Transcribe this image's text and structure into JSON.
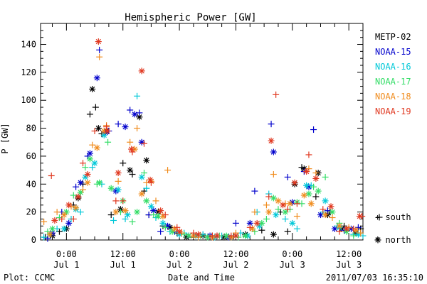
{
  "chart_data": {
    "type": "scatter",
    "title": "Hemispheric Power [GW]",
    "ylabel": "P [GW]",
    "xlabel": "Date and Time",
    "footer_left": "Plot: CCMC",
    "footer_right": "2011/07/03 16:35:10",
    "x_unit": "hours from 2011/07/01 00:00",
    "xlim": [
      -5.5,
      63
    ],
    "ylim": [
      0,
      155
    ],
    "grid": false,
    "y_ticks": [
      0,
      20,
      40,
      60,
      80,
      100,
      120,
      140
    ],
    "x_ticks": [
      {
        "x": 0,
        "time": "0:00",
        "date": "Jul 1"
      },
      {
        "x": 12,
        "time": "12:00",
        "date": "Jul 1"
      },
      {
        "x": 24,
        "time": "0:00",
        "date": "Jul 2"
      },
      {
        "x": 36,
        "time": "12:00",
        "date": "Jul 2"
      },
      {
        "x": 48,
        "time": "0:00",
        "date": "Jul 3"
      },
      {
        "x": 60,
        "time": "12:00",
        "date": "Jul 3"
      }
    ],
    "marker_legend": {
      "south": "+ south",
      "north": "* north"
    },
    "series": [
      {
        "name": "METP-02",
        "color": "#000000",
        "south": [
          [
            -4.5,
            2
          ],
          [
            -1.5,
            6
          ],
          [
            1.5,
            25
          ],
          [
            3.5,
            40
          ],
          [
            5,
            90
          ],
          [
            6.2,
            95
          ],
          [
            7.5,
            76
          ],
          [
            9.5,
            18
          ],
          [
            12,
            55
          ],
          [
            14,
            47
          ],
          [
            16.5,
            35
          ],
          [
            17.5,
            18
          ],
          [
            20.5,
            10
          ],
          [
            23.5,
            5
          ],
          [
            27,
            2
          ],
          [
            31,
            3
          ],
          [
            35.5,
            3
          ],
          [
            41.5,
            7
          ],
          [
            45.5,
            20
          ],
          [
            47,
            6
          ],
          [
            50,
            52
          ],
          [
            53,
            31
          ],
          [
            56,
            20
          ],
          [
            59,
            10
          ],
          [
            62.5,
            8
          ]
        ],
        "north": [
          [
            -3,
            3
          ],
          [
            0,
            8
          ],
          [
            2.5,
            30
          ],
          [
            5.5,
            108
          ],
          [
            6.8,
            80
          ],
          [
            8.5,
            78
          ],
          [
            11.5,
            22
          ],
          [
            13.5,
            50
          ],
          [
            15.5,
            88
          ],
          [
            17,
            57
          ],
          [
            19.5,
            20
          ],
          [
            22,
            9
          ],
          [
            25.5,
            2
          ],
          [
            29,
            3
          ],
          [
            33.5,
            2
          ],
          [
            38,
            4
          ],
          [
            44,
            4
          ],
          [
            48.5,
            40
          ],
          [
            50.5,
            51
          ],
          [
            53.5,
            48
          ],
          [
            55.5,
            18
          ],
          [
            58.5,
            8
          ],
          [
            61.5,
            5
          ]
        ]
      },
      {
        "name": "NOAA-15",
        "color": "#0000cc",
        "south": [
          [
            -4,
            1
          ],
          [
            -1,
            20
          ],
          [
            2,
            38
          ],
          [
            4.5,
            60
          ],
          [
            7,
            136
          ],
          [
            9,
            78
          ],
          [
            11,
            83
          ],
          [
            13.5,
            93
          ],
          [
            15.5,
            91
          ],
          [
            17.5,
            18
          ],
          [
            20,
            6
          ],
          [
            23,
            6
          ],
          [
            28,
            3
          ],
          [
            32,
            3
          ],
          [
            36,
            12
          ],
          [
            40,
            35
          ],
          [
            43.5,
            83
          ],
          [
            47,
            45
          ],
          [
            50.5,
            49
          ],
          [
            52.5,
            79
          ],
          [
            55.5,
            21
          ],
          [
            59,
            7
          ],
          [
            62,
            9
          ]
        ],
        "north": [
          [
            -3,
            5
          ],
          [
            0.5,
            12
          ],
          [
            3,
            41
          ],
          [
            5,
            62
          ],
          [
            6.5,
            116
          ],
          [
            8.3,
            77
          ],
          [
            10.5,
            35
          ],
          [
            12.5,
            81
          ],
          [
            14.5,
            90
          ],
          [
            16,
            70
          ],
          [
            18.5,
            21
          ],
          [
            21.5,
            10
          ],
          [
            26,
            3
          ],
          [
            30.5,
            3
          ],
          [
            34.5,
            2
          ],
          [
            39,
            12
          ],
          [
            44,
            63
          ],
          [
            48,
            27
          ],
          [
            51.5,
            38
          ],
          [
            54,
            18
          ],
          [
            57,
            8
          ],
          [
            60.5,
            8
          ]
        ]
      },
      {
        "name": "NOAA-16",
        "color": "#00c8d8",
        "south": [
          [
            -4.8,
            2
          ],
          [
            -2,
            8
          ],
          [
            1,
            15
          ],
          [
            3,
            20
          ],
          [
            5.5,
            52
          ],
          [
            7.5,
            40
          ],
          [
            10,
            14
          ],
          [
            12.5,
            15
          ],
          [
            15,
            103
          ],
          [
            17,
            37
          ],
          [
            19,
            16
          ],
          [
            22,
            6
          ],
          [
            25,
            5
          ],
          [
            29,
            4
          ],
          [
            33,
            3
          ],
          [
            37,
            5
          ],
          [
            40.5,
            20
          ],
          [
            43,
            33
          ],
          [
            46.5,
            15
          ],
          [
            49,
            8
          ],
          [
            52,
            39
          ],
          [
            54.5,
            20
          ],
          [
            57.5,
            10
          ],
          [
            61,
            4
          ],
          [
            63,
            3
          ]
        ],
        "north": [
          [
            -3.5,
            4
          ],
          [
            -0.5,
            8
          ],
          [
            2,
            22
          ],
          [
            4,
            45
          ],
          [
            6,
            55
          ],
          [
            8,
            75
          ],
          [
            11,
            36
          ],
          [
            13,
            18
          ],
          [
            16,
            45
          ],
          [
            18,
            24
          ],
          [
            20.5,
            12
          ],
          [
            24,
            4
          ],
          [
            27.5,
            3
          ],
          [
            31.5,
            2
          ],
          [
            35,
            2
          ],
          [
            38.5,
            3
          ],
          [
            41,
            10
          ],
          [
            44.5,
            18
          ],
          [
            48,
            12
          ],
          [
            51,
            39
          ],
          [
            55,
            28
          ],
          [
            58,
            9
          ],
          [
            62,
            4
          ]
        ]
      },
      {
        "name": "NOAA-17",
        "color": "#33dd66",
        "south": [
          [
            -4,
            6
          ],
          [
            -1.5,
            16
          ],
          [
            1.5,
            32
          ],
          [
            4,
            52
          ],
          [
            6.5,
            40
          ],
          [
            8.8,
            70
          ],
          [
            11.5,
            20
          ],
          [
            14,
            13
          ],
          [
            16.5,
            48
          ],
          [
            18.5,
            18
          ],
          [
            21,
            9
          ],
          [
            25,
            4
          ],
          [
            28.5,
            3
          ],
          [
            32.5,
            3
          ],
          [
            36.5,
            2
          ],
          [
            40,
            6
          ],
          [
            42.5,
            15
          ],
          [
            45,
            22
          ],
          [
            47.5,
            22
          ],
          [
            50,
            26
          ],
          [
            52.5,
            38
          ],
          [
            55,
            45
          ],
          [
            58,
            12
          ],
          [
            61,
            3
          ]
        ],
        "north": [
          [
            -3,
            8
          ],
          [
            0,
            20
          ],
          [
            3,
            34
          ],
          [
            5,
            58
          ],
          [
            7,
            41
          ],
          [
            9.5,
            37
          ],
          [
            12,
            28
          ],
          [
            15,
            20
          ],
          [
            17,
            28
          ],
          [
            19.5,
            17
          ],
          [
            22.5,
            6
          ],
          [
            26,
            3
          ],
          [
            30,
            2
          ],
          [
            34,
            3
          ],
          [
            38,
            3
          ],
          [
            41.5,
            12
          ],
          [
            44,
            30
          ],
          [
            46.5,
            20
          ],
          [
            49,
            27
          ],
          [
            51.5,
            33
          ],
          [
            53.5,
            35
          ],
          [
            56.5,
            20
          ],
          [
            59.5,
            6
          ]
        ]
      },
      {
        "name": "NOAA-18",
        "color": "#f08c1e",
        "south": [
          [
            -4.8,
            13
          ],
          [
            -2,
            20
          ],
          [
            1,
            24
          ],
          [
            3.5,
            36
          ],
          [
            5.5,
            68
          ],
          [
            7,
            131
          ],
          [
            8.5,
            82
          ],
          [
            11,
            42
          ],
          [
            13.5,
            70
          ],
          [
            15,
            80
          ],
          [
            17,
            41
          ],
          [
            19,
            28
          ],
          [
            21.5,
            50
          ],
          [
            24.5,
            5
          ],
          [
            28,
            2
          ],
          [
            32,
            3
          ],
          [
            36,
            5
          ],
          [
            40,
            20
          ],
          [
            42.5,
            25
          ],
          [
            44,
            47
          ],
          [
            46.5,
            26
          ],
          [
            49,
            17
          ],
          [
            51.5,
            51
          ],
          [
            53,
            48
          ],
          [
            56.5,
            16
          ],
          [
            60,
            9
          ],
          [
            62.5,
            5
          ]
        ],
        "north": [
          [
            -3.5,
            4
          ],
          [
            -0.5,
            18
          ],
          [
            2,
            23
          ],
          [
            4.5,
            41
          ],
          [
            6.5,
            66
          ],
          [
            8,
            78
          ],
          [
            10.5,
            20
          ],
          [
            12.5,
            21
          ],
          [
            14.5,
            65
          ],
          [
            16,
            33
          ],
          [
            18,
            42
          ],
          [
            20.5,
            17
          ],
          [
            23,
            8
          ],
          [
            27,
            3
          ],
          [
            31,
            2
          ],
          [
            35,
            2
          ],
          [
            39.5,
            8
          ],
          [
            43,
            20
          ],
          [
            45,
            28
          ],
          [
            47.5,
            26
          ],
          [
            50.5,
            32
          ],
          [
            52,
            26
          ],
          [
            55,
            18
          ],
          [
            58,
            10
          ],
          [
            61.5,
            7
          ]
        ]
      },
      {
        "name": "NOAA-19",
        "color": "#e03820",
        "south": [
          [
            -3.2,
            46
          ],
          [
            -1,
            15
          ],
          [
            1.5,
            15
          ],
          [
            3.5,
            55
          ],
          [
            6,
            78
          ],
          [
            8.5,
            81
          ],
          [
            10.5,
            28
          ],
          [
            12,
            28
          ],
          [
            14,
            63
          ],
          [
            16.5,
            69
          ],
          [
            18,
            41
          ],
          [
            21,
            18
          ],
          [
            23.5,
            9
          ],
          [
            27,
            5
          ],
          [
            31,
            3
          ],
          [
            35,
            3
          ],
          [
            39,
            9
          ],
          [
            43,
            31
          ],
          [
            44.5,
            104
          ],
          [
            47,
            22
          ],
          [
            49,
            26
          ],
          [
            51.5,
            61
          ],
          [
            54.5,
            22
          ],
          [
            58,
            6
          ],
          [
            61,
            8
          ],
          [
            62.8,
            17
          ]
        ],
        "north": [
          [
            -2.5,
            14
          ],
          [
            0.5,
            25
          ],
          [
            2.5,
            31
          ],
          [
            4.5,
            47
          ],
          [
            6.8,
            142
          ],
          [
            8.7,
            78
          ],
          [
            11,
            48
          ],
          [
            13.8,
            65
          ],
          [
            16,
            121
          ],
          [
            17.8,
            43
          ],
          [
            20,
            21
          ],
          [
            24,
            6
          ],
          [
            28,
            4
          ],
          [
            32,
            3
          ],
          [
            36,
            3
          ],
          [
            40.5,
            12
          ],
          [
            43.5,
            71
          ],
          [
            46,
            25
          ],
          [
            48.5,
            41
          ],
          [
            51,
            49
          ],
          [
            53,
            44
          ],
          [
            56.2,
            24
          ],
          [
            59.5,
            8
          ],
          [
            62.3,
            17
          ]
        ]
      }
    ]
  }
}
